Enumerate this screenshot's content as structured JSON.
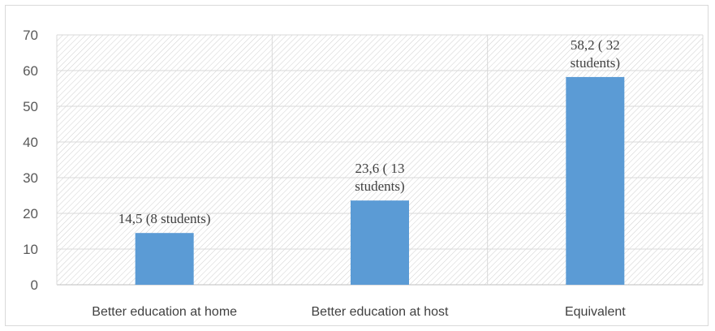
{
  "chart_data": {
    "type": "bar",
    "categories": [
      "Better education at home",
      "Better education at host",
      "Equivalent"
    ],
    "series": [
      {
        "values": [
          14.5,
          23.6,
          58.2
        ],
        "color": "#5b9bd5"
      }
    ],
    "data_labels": [
      [
        "14,5 (8 students)"
      ],
      [
        "23,6 ( 13",
        "students)"
      ],
      [
        "58,2 ( 32",
        "students)"
      ]
    ],
    "ylim": [
      0,
      70
    ],
    "y_ticks": [
      0,
      10,
      20,
      30,
      40,
      50,
      60,
      70
    ],
    "grid": true,
    "plot_pattern": "diagonal-hatch",
    "legend": "none",
    "title": "",
    "xlabel": "",
    "ylabel": ""
  }
}
